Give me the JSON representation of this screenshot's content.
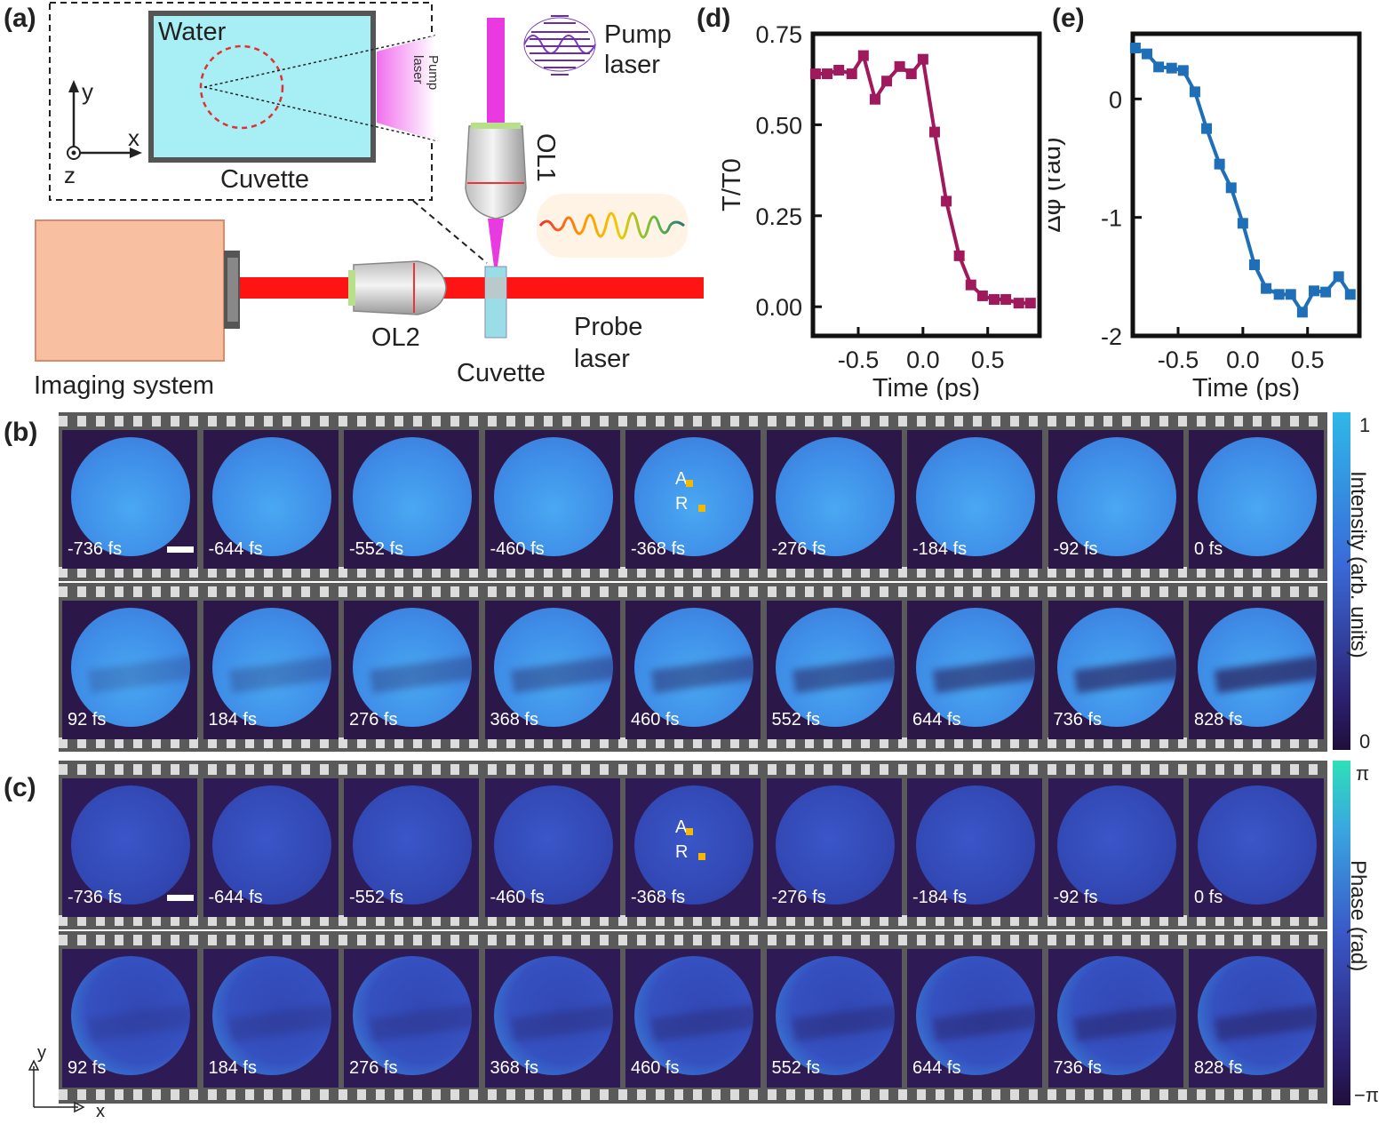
{
  "panel_labels": {
    "a": "(a)",
    "b": "(b)",
    "c": "(c)",
    "d": "(d)",
    "e": "(e)"
  },
  "schematic": {
    "water": "Water",
    "cuvette_inset": "Cuvette",
    "pump_laser_inset": "Pump laser",
    "axis_y": "y",
    "axis_x": "x",
    "axis_z": "z",
    "pump_laser": "Pump laser",
    "ol1": "OL1",
    "ol2": "OL2",
    "probe_laser": "Probe laser",
    "cuvette": "Cuvette",
    "imaging_system": "Imaging system"
  },
  "colors": {
    "pump": "#e83ae0",
    "probe": "#ff1414",
    "plot_d": "#a0195c",
    "plot_e": "#1f6fb8"
  },
  "chart_data": [
    {
      "id": "d",
      "type": "line",
      "title": "",
      "xlabel": "Time (ps)",
      "ylabel": "T/T0",
      "xlim": [
        -0.85,
        0.9
      ],
      "ylim": [
        -0.08,
        0.75
      ],
      "xticks": [
        "-0.5",
        "0.0",
        "0.5"
      ],
      "yticks": [
        "0.00",
        "0.25",
        "0.50",
        "0.75"
      ],
      "x": [
        -0.83,
        -0.74,
        -0.65,
        -0.55,
        -0.46,
        -0.37,
        -0.28,
        -0.18,
        -0.09,
        0.0,
        0.09,
        0.18,
        0.28,
        0.37,
        0.46,
        0.55,
        0.64,
        0.74,
        0.83
      ],
      "y": [
        0.64,
        0.64,
        0.65,
        0.64,
        0.69,
        0.57,
        0.62,
        0.66,
        0.64,
        0.68,
        0.48,
        0.29,
        0.14,
        0.06,
        0.03,
        0.02,
        0.02,
        0.01,
        0.01
      ]
    },
    {
      "id": "e",
      "type": "line",
      "title": "",
      "xlabel": "Time (ps)",
      "ylabel": "Δφ (rad)",
      "xlim": [
        -0.85,
        0.9
      ],
      "ylim": [
        -2.0,
        0.55
      ],
      "xticks": [
        "-0.5",
        "0.0",
        "0.5"
      ],
      "yticks": [
        "0",
        "-1",
        "-2"
      ],
      "x": [
        -0.83,
        -0.74,
        -0.65,
        -0.55,
        -0.46,
        -0.37,
        -0.28,
        -0.18,
        -0.09,
        0.0,
        0.09,
        0.18,
        0.28,
        0.37,
        0.46,
        0.55,
        0.64,
        0.74,
        0.83
      ],
      "y": [
        0.43,
        0.38,
        0.27,
        0.26,
        0.24,
        0.06,
        -0.25,
        -0.55,
        -0.75,
        -1.05,
        -1.4,
        -1.6,
        -1.65,
        -1.65,
        -1.8,
        -1.62,
        -1.63,
        -1.5,
        -1.65
      ]
    }
  ],
  "intensity_frames": {
    "row1": [
      "-736 fs",
      "-644 fs",
      "-552 fs",
      "-460 fs",
      "-368 fs",
      "-276 fs",
      "-184 fs",
      "-92 fs",
      "0 fs"
    ],
    "row2": [
      "92 fs",
      "184 fs",
      "276 fs",
      "368 fs",
      "460 fs",
      "552 fs",
      "644 fs",
      "736 fs",
      "828 fs"
    ]
  },
  "phase_frames": {
    "row1": [
      "-736 fs",
      "-644 fs",
      "-552 fs",
      "-460 fs",
      "-368 fs",
      "-276 fs",
      "-184 fs",
      "-92 fs",
      "0 fs"
    ],
    "row2": [
      "92 fs",
      "184 fs",
      "276 fs",
      "368 fs",
      "460 fs",
      "552 fs",
      "644 fs",
      "736 fs",
      "828 fs"
    ]
  },
  "markers": {
    "a": "A",
    "r": "R"
  },
  "intensity_colorbar": {
    "max": "1",
    "min": "0",
    "label": "Intensity (arb. units)"
  },
  "phase_colorbar": {
    "max": "π",
    "min": "−π",
    "label": "Phase (rad)"
  },
  "corner_axes": {
    "y": "y",
    "x": "x"
  }
}
